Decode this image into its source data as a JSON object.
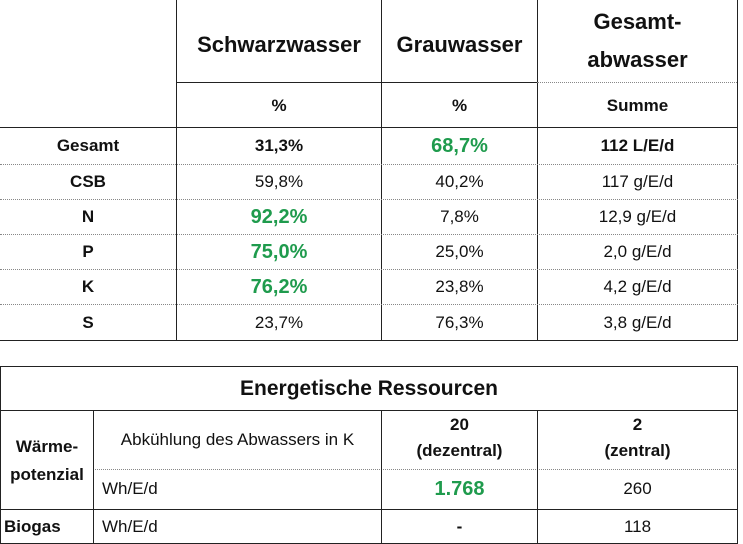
{
  "table1": {
    "headers": {
      "col1": "Schwarzwasser",
      "col2": "Grauwasser",
      "col3_line1": "Gesamt-",
      "col3_line2": "abwasser"
    },
    "subheaders": {
      "col1": "%",
      "col2": "%",
      "col3": "Summe"
    },
    "rows": [
      {
        "label": "Gesamt",
        "c1": "31,3%",
        "c2": "68,7%",
        "c3": "112 L/E/d"
      },
      {
        "label": "CSB",
        "c1": "59,8%",
        "c2": "40,2%",
        "c3": "117 g/E/d"
      },
      {
        "label": "N",
        "c1": "92,2%",
        "c2": "7,8%",
        "c3": "12,9 g/E/d"
      },
      {
        "label": "P",
        "c1": "75,0%",
        "c2": "25,0%",
        "c3": "2,0 g/E/d"
      },
      {
        "label": "K",
        "c1": "76,2%",
        "c2": "23,8%",
        "c3": "4,2 g/E/d"
      },
      {
        "label": "S",
        "c1": "23,7%",
        "c2": "76,3%",
        "c3": "3,8 g/E/d"
      }
    ]
  },
  "table2": {
    "title": "Energetische Ressourcen",
    "waerme_label_line1": "Wärme-",
    "waerme_label_line2": "potenzial",
    "cooling_label": "Abkühlung des Abwassers in K",
    "dezentral_value": "20",
    "dezentral_label": "(dezentral)",
    "zentral_value": "2",
    "zentral_label": "(zentral)",
    "unit1": "Wh/E/d",
    "waerme_dezentral": "1.768",
    "waerme_zentral": "260",
    "biogas_label": "Biogas",
    "unit2": "Wh/E/d",
    "biogas_dezentral": "-",
    "biogas_zentral": "118"
  },
  "colors": {
    "highlight_green": "#1f9b4d"
  }
}
